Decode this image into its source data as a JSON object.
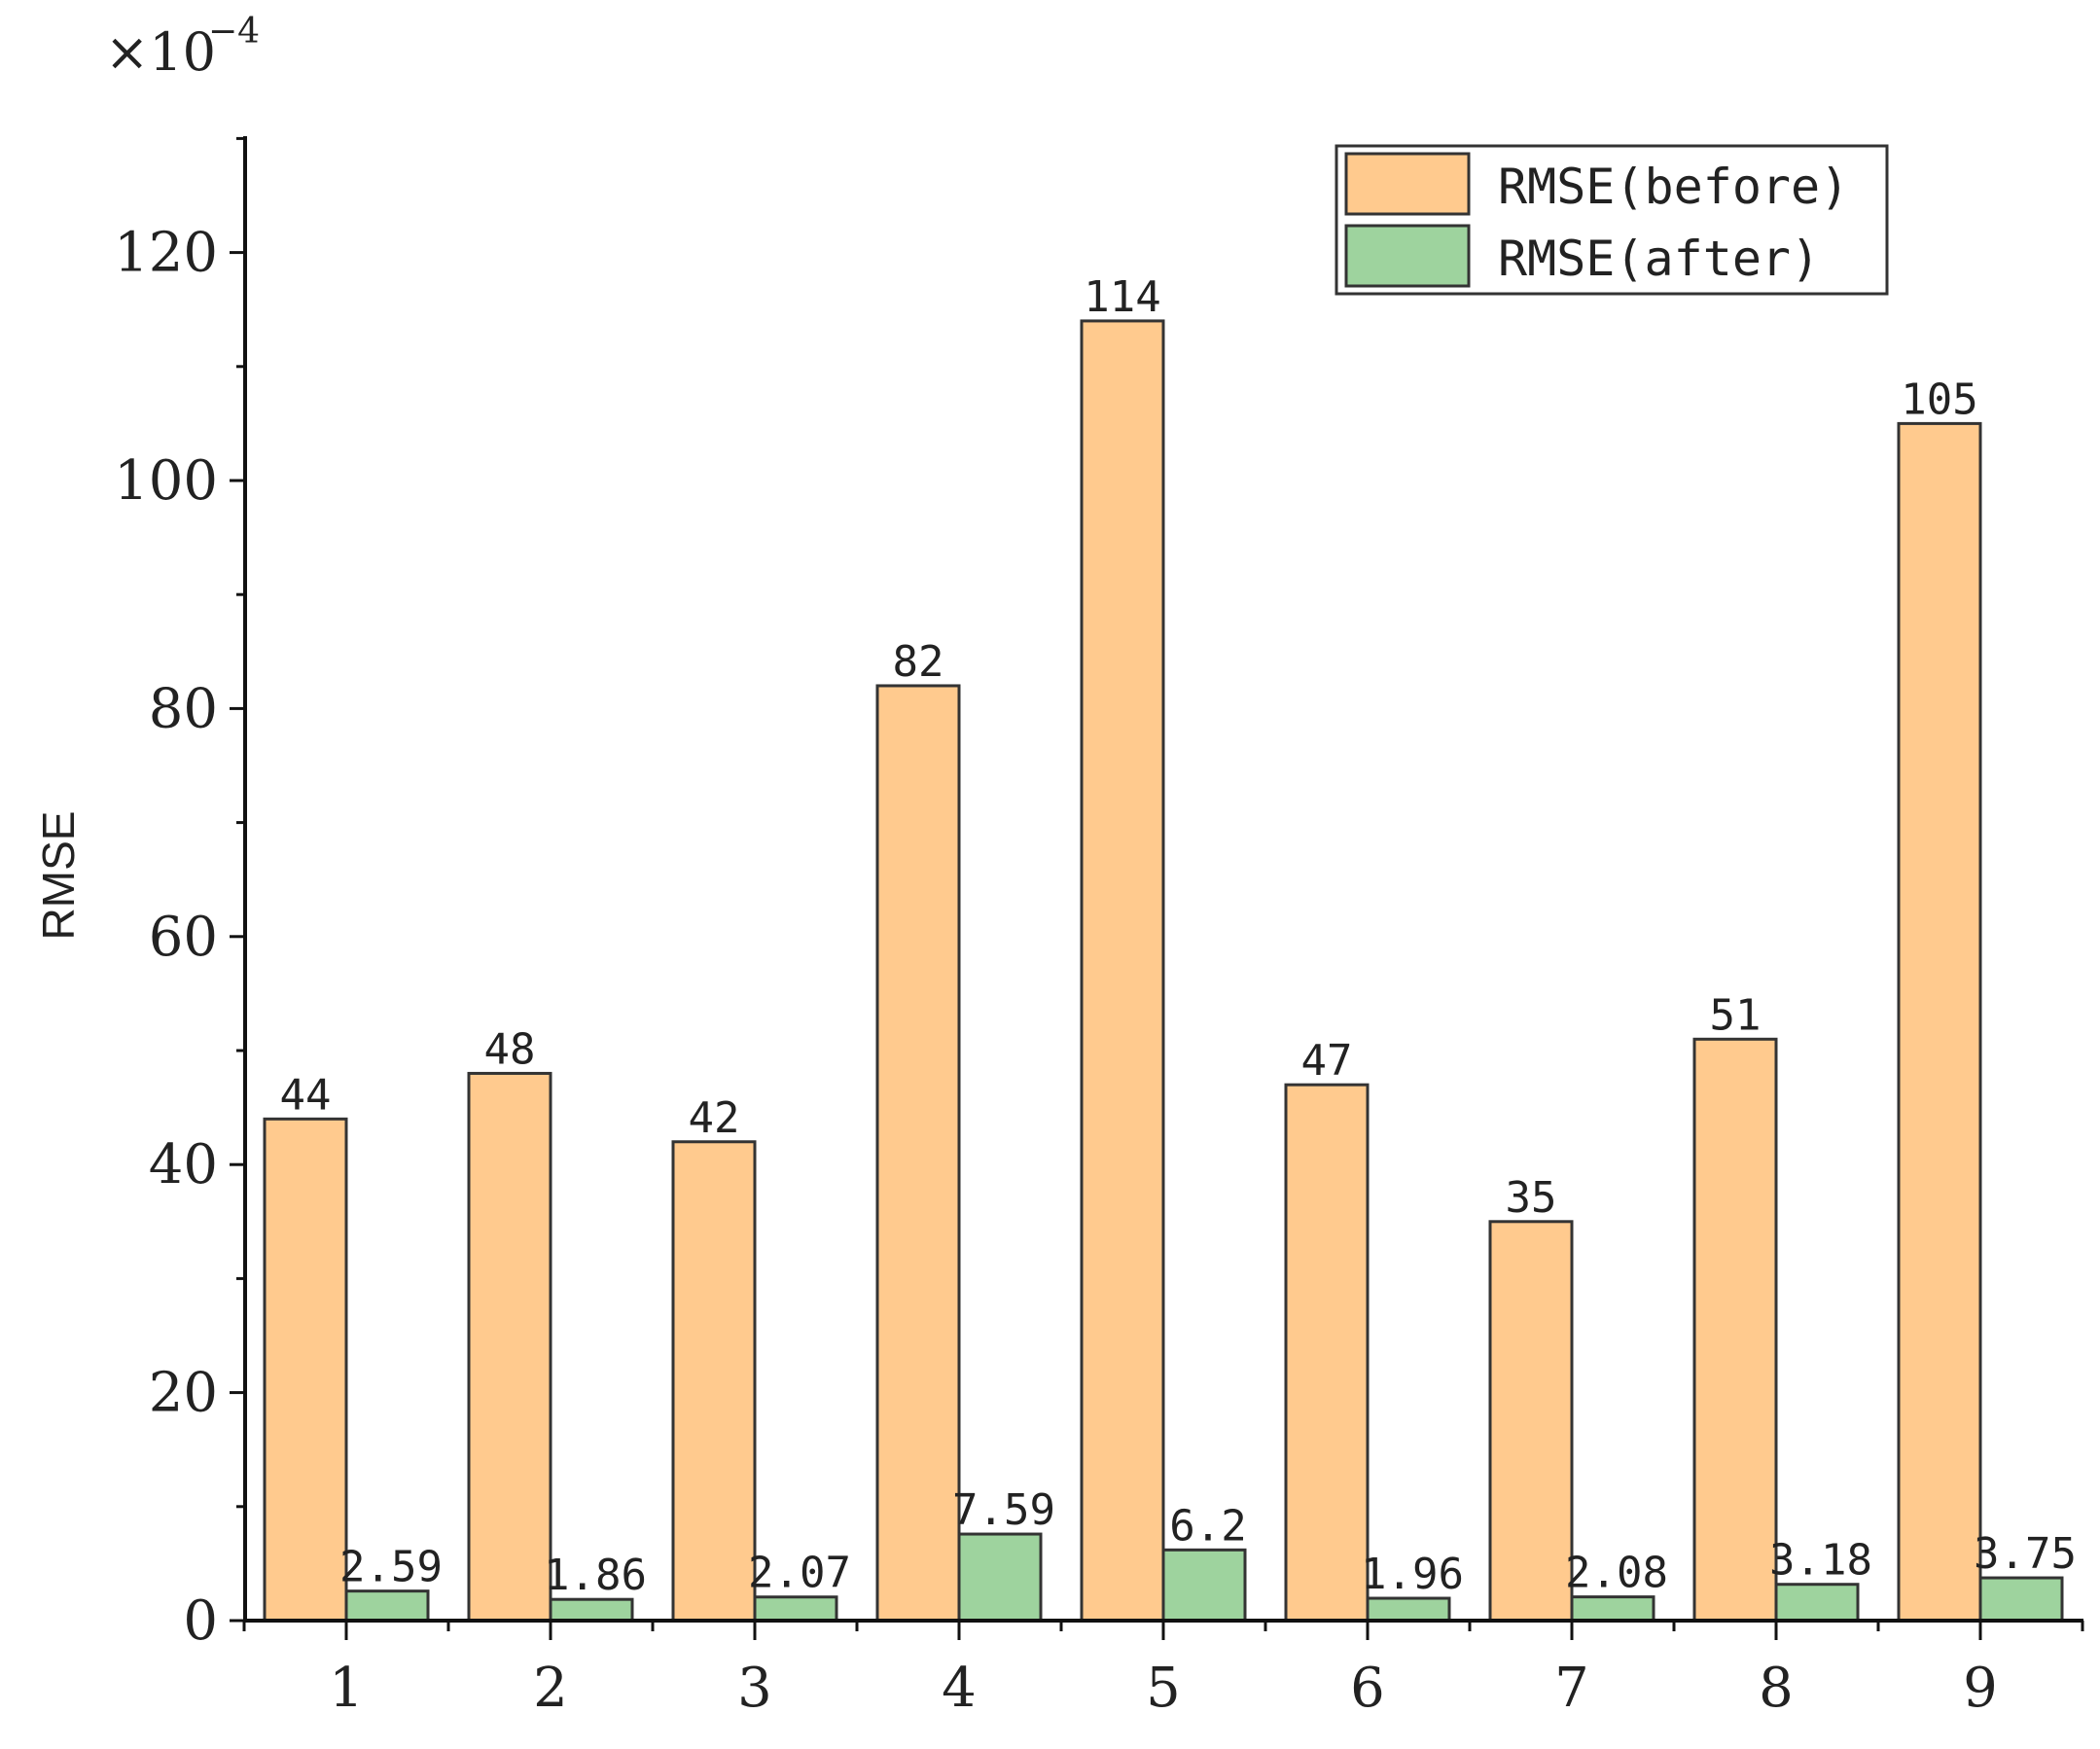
{
  "chart_data": {
    "type": "bar",
    "ylabel": "RMSE",
    "xlabel": "",
    "y_multiplier": {
      "base": "×10",
      "exponent": "−4"
    },
    "ylim": [
      0,
      130
    ],
    "yticks": [
      0,
      20,
      40,
      60,
      80,
      100,
      120
    ],
    "categories": [
      "1",
      "2",
      "3",
      "4",
      "5",
      "6",
      "7",
      "8",
      "9"
    ],
    "series": [
      {
        "name": "RMSE(before)",
        "color": "#FFCA8E",
        "values": [
          44,
          48,
          42,
          82,
          114,
          47,
          35,
          51,
          105
        ],
        "labels": [
          "44",
          "48",
          "42",
          "82",
          "114",
          "47",
          "35",
          "51",
          "105"
        ]
      },
      {
        "name": "RMSE(after)",
        "color": "#9ED39E",
        "values": [
          2.59,
          1.86,
          2.07,
          7.59,
          6.2,
          1.96,
          2.08,
          3.18,
          3.75
        ],
        "labels": [
          "2.59",
          "1.86",
          "2.07",
          "7.59",
          "6.2",
          "1.96",
          "2.08",
          "3.18",
          "3.75"
        ]
      }
    ],
    "legend_position": "top-right",
    "grid": false
  }
}
